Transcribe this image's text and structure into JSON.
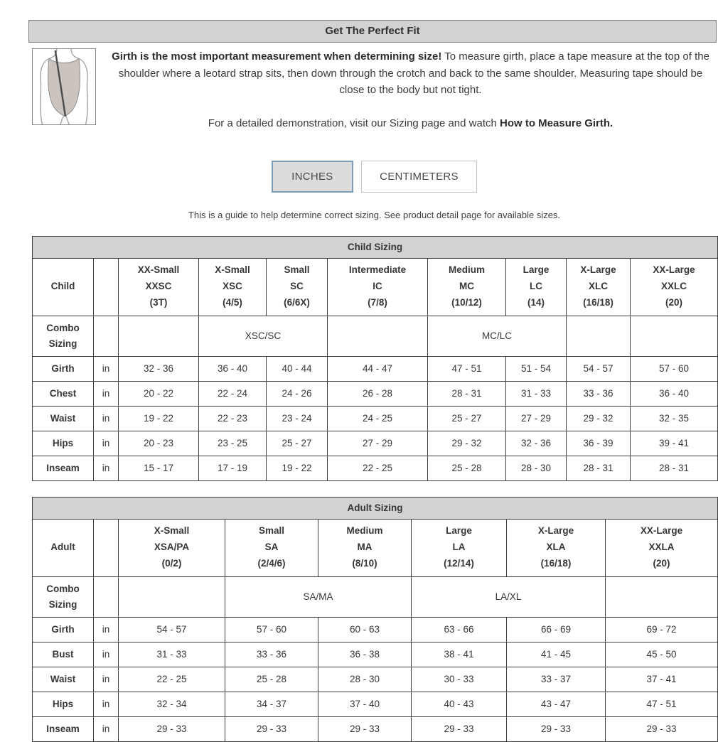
{
  "ui": {
    "title_bar": "Get The Perfect Fit",
    "intro": {
      "lead_bold": "Girth is the most important measurement when determining size!",
      "lead_rest": " To measure girth, place a tape measure at the top of the shoulder where a leotard strap sits, then down through the crotch and back to the same shoulder. Measuring tape should be close to the body but not tight.",
      "demo_pre": "For a detailed demonstration, visit our Sizing page and watch ",
      "demo_bold": "How to Measure Girth."
    },
    "buttons": {
      "inches": "INCHES",
      "centimeters": "CENTIMETERS",
      "selected": "INCHES"
    },
    "guide_note": "This is a guide to help determine correct sizing. See product detail page for available sizes.",
    "colors": {
      "header_bar_bg": "#d2d2d2",
      "selected_button_bg": "#dcdcdc",
      "selected_button_border": "#7b9cba",
      "table_border": "#3f3f3f"
    }
  },
  "child_table": {
    "title": "Child Sizing",
    "row_label": "Child",
    "combo_label": "Combo Sizing",
    "columns": [
      {
        "name": "XX-Small",
        "code": "XXSC",
        "range": "(3T)"
      },
      {
        "name": "X-Small",
        "code": "XSC",
        "range": "(4/5)"
      },
      {
        "name": "Small",
        "code": "SC",
        "range": "(6/6X)"
      },
      {
        "name": "Intermediate",
        "code": "IC",
        "range": "(7/8)"
      },
      {
        "name": "Medium",
        "code": "MC",
        "range": "(10/12)"
      },
      {
        "name": "Large",
        "code": "LC",
        "range": "(14)"
      },
      {
        "name": "X-Large",
        "code": "XLC",
        "range": "(16/18)"
      },
      {
        "name": "XX-Large",
        "code": "XXLC",
        "range": "(20)"
      }
    ],
    "combo_cells": [
      {
        "label": "",
        "span": 1
      },
      {
        "label": "XSC/SC",
        "span": 2
      },
      {
        "label": "",
        "span": 1
      },
      {
        "label": "MC/LC",
        "span": 2
      },
      {
        "label": "",
        "span": 1
      },
      {
        "label": "",
        "span": 1
      }
    ],
    "rows": [
      {
        "label": "Girth",
        "unit": "in",
        "values": [
          "32 - 36",
          "36 - 40",
          "40 - 44",
          "44 - 47",
          "47 - 51",
          "51 - 54",
          "54 - 57",
          "57 - 60"
        ]
      },
      {
        "label": "Chest",
        "unit": "in",
        "values": [
          "20 - 22",
          "22 - 24",
          "24 - 26",
          "26 - 28",
          "28 - 31",
          "31 - 33",
          "33 - 36",
          "36 - 40"
        ]
      },
      {
        "label": "Waist",
        "unit": "in",
        "values": [
          "19 - 22",
          "22 - 23",
          "23 - 24",
          "24 - 25",
          "25 - 27",
          "27 - 29",
          "29 - 32",
          "32 - 35"
        ]
      },
      {
        "label": "Hips",
        "unit": "in",
        "values": [
          "20 - 23",
          "23 - 25",
          "25 - 27",
          "27 - 29",
          "29 - 32",
          "32 - 36",
          "36 - 39",
          "39 - 41"
        ]
      },
      {
        "label": "Inseam",
        "unit": "in",
        "values": [
          "15 - 17",
          "17 - 19",
          "19 - 22",
          "22 - 25",
          "25 - 28",
          "28 - 30",
          "28 - 31",
          "28 - 31"
        ]
      }
    ]
  },
  "adult_table": {
    "title": "Adult Sizing",
    "row_label": "Adult",
    "combo_label": "Combo Sizing",
    "columns": [
      {
        "name": "X-Small",
        "code": "XSA/PA",
        "range": "(0/2)"
      },
      {
        "name": "Small",
        "code": "SA",
        "range": "(2/4/6)"
      },
      {
        "name": "Medium",
        "code": "MA",
        "range": "(8/10)"
      },
      {
        "name": "Large",
        "code": "LA",
        "range": "(12/14)"
      },
      {
        "name": "X-Large",
        "code": "XLA",
        "range": "(16/18)"
      },
      {
        "name": "XX-Large",
        "code": "XXLA",
        "range": "(20)"
      }
    ],
    "combo_cells": [
      {
        "label": "",
        "span": 1
      },
      {
        "label": "SA/MA",
        "span": 2
      },
      {
        "label": "LA/XL",
        "span": 2
      },
      {
        "label": "",
        "span": 1
      }
    ],
    "rows": [
      {
        "label": "Girth",
        "unit": "in",
        "values": [
          "54 - 57",
          "57 - 60",
          "60 - 63",
          "63 - 66",
          "66 - 69",
          "69 - 72"
        ]
      },
      {
        "label": "Bust",
        "unit": "in",
        "values": [
          "31 - 33",
          "33 - 36",
          "36 - 38",
          "38 - 41",
          "41 - 45",
          "45 - 50"
        ]
      },
      {
        "label": "Waist",
        "unit": "in",
        "values": [
          "22 - 25",
          "25 - 28",
          "28 - 30",
          "30 - 33",
          "33 - 37",
          "37 - 41"
        ]
      },
      {
        "label": "Hips",
        "unit": "in",
        "values": [
          "32 - 34",
          "34 - 37",
          "37 - 40",
          "40 - 43",
          "43 - 47",
          "47 - 51"
        ]
      },
      {
        "label": "Inseam",
        "unit": "in",
        "values": [
          "29 - 33",
          "29 - 33",
          "29 - 33",
          "29 - 33",
          "29 - 33",
          "29 - 33"
        ]
      }
    ]
  }
}
